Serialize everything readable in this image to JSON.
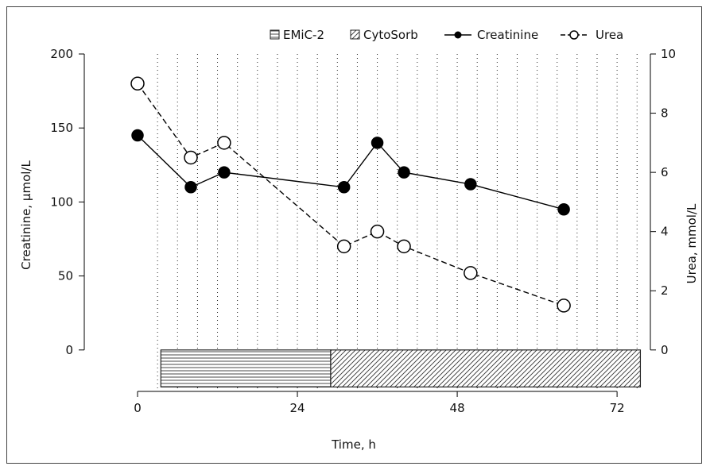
{
  "chart_data": {
    "type": "line",
    "xlabel": "Time, h",
    "ylabel_left": "Creatinine, µmol/L",
    "ylabel_right": "Urea, mmol/L",
    "x_ticks": [
      0,
      24,
      48,
      72
    ],
    "y_left_ticks": [
      0,
      50,
      100,
      150,
      200
    ],
    "y_right_ticks": [
      0,
      2,
      4,
      6,
      8,
      10
    ],
    "xlim": [
      -8,
      77
    ],
    "ylim_left": [
      -28,
      200
    ],
    "ylim_right": [
      -1.4,
      10
    ],
    "grid": "vertical dotted lines",
    "vertical_gridlines_x": [
      3,
      6,
      9,
      12,
      15,
      18,
      21,
      24,
      27,
      30,
      33,
      36,
      39,
      42,
      45,
      48,
      51,
      54,
      57,
      60,
      63,
      66,
      69,
      72,
      75
    ],
    "legend_position": "top-right",
    "series": [
      {
        "name": "Creatinine",
        "axis": "left",
        "style": "solid line, filled circle markers",
        "color": "#000000",
        "x": [
          0,
          8,
          13,
          31,
          36,
          40,
          50,
          64
        ],
        "values": [
          145,
          110,
          120,
          110,
          140,
          120,
          112,
          95
        ]
      },
      {
        "name": "Urea",
        "axis": "right",
        "style": "dashed line, open circle markers",
        "color": "#000000",
        "x": [
          0,
          8,
          13,
          31,
          36,
          40,
          50,
          64
        ],
        "values": [
          9.0,
          6.5,
          7.0,
          3.5,
          4.0,
          3.5,
          2.6,
          1.5
        ]
      }
    ],
    "bars": [
      {
        "name": "EMiC-2",
        "pattern": "horizontal lines",
        "x_start": 3.5,
        "x_end": 29
      },
      {
        "name": "CytoSorb",
        "pattern": "diagonal hatch",
        "x_start": 29,
        "x_end": 75.5
      }
    ],
    "bar_y_range_left": [
      -25,
      0
    ]
  }
}
